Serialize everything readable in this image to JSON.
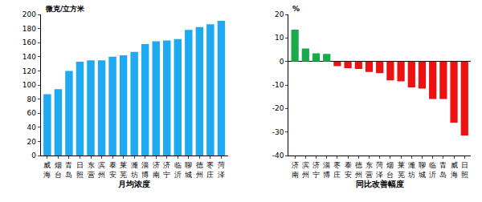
{
  "chart_data": [
    {
      "type": "bar",
      "xlabel": "月均浓度",
      "ylabel": "微克/立方米",
      "categories": [
        "威海",
        "烟台",
        "青岛",
        "日照",
        "东营",
        "滨州",
        "泰安",
        "莱芜",
        "潍坊",
        "淄博",
        "济南",
        "济宁",
        "临沂",
        "聊城",
        "德州",
        "枣庄",
        "菏泽"
      ],
      "values": [
        87,
        94,
        120,
        133,
        135,
        135,
        140,
        142,
        147,
        158,
        162,
        163,
        165,
        178,
        182,
        186,
        191
      ],
      "color": "#1eaaf0",
      "ylim": [
        0,
        200
      ],
      "yticks": [
        0,
        20,
        40,
        60,
        80,
        100,
        120,
        140,
        160,
        180,
        200
      ],
      "grid": false
    },
    {
      "type": "bar",
      "xlabel": "同比改善幅度",
      "ylabel": "%",
      "categories": [
        "济南",
        "滨州",
        "济宁",
        "淄博",
        "枣庄",
        "泰安",
        "德州",
        "东营",
        "菏泽",
        "烟台",
        "莱芜",
        "潍坊",
        "聊城",
        "临沂",
        "青岛",
        "威海",
        "日照"
      ],
      "values": [
        13.5,
        5.5,
        3.5,
        3.2,
        -2,
        -2.8,
        -3.2,
        -4.5,
        -5,
        -8,
        -8.5,
        -11,
        -11.5,
        -16,
        -16,
        -26,
        -31.5
      ],
      "colors": [
        "#1aaa4a",
        "#1aaa4a",
        "#1aaa4a",
        "#1aaa4a",
        "#ee1111",
        "#ee1111",
        "#ee1111",
        "#ee1111",
        "#ee1111",
        "#ee1111",
        "#ee1111",
        "#ee1111",
        "#ee1111",
        "#ee1111",
        "#ee1111",
        "#ee1111",
        "#ee1111"
      ],
      "ylim": [
        -40,
        20
      ],
      "yticks": [
        -40,
        -30,
        -20,
        -10,
        0,
        10,
        20
      ],
      "grid": false
    }
  ]
}
